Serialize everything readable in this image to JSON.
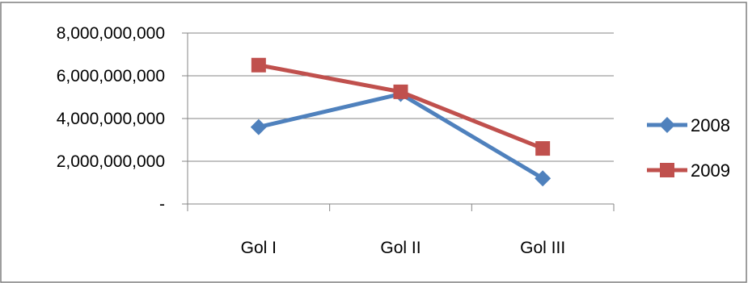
{
  "chart_data": {
    "type": "line",
    "title": "",
    "xlabel": "",
    "ylabel": "",
    "categories": [
      "Gol I",
      "Gol II",
      "Gol III"
    ],
    "ylim": [
      0,
      8000000000
    ],
    "y_ticks": [
      0,
      2000000000,
      4000000000,
      6000000000,
      8000000000
    ],
    "y_tick_labels": [
      "-",
      "2,000,000,000",
      "4,000,000,000",
      "6,000,000,000",
      "8,000,000,000"
    ],
    "grid": true,
    "legend_position": "right",
    "series": [
      {
        "name": "2008",
        "values": [
          3600000000,
          5150000000,
          1200000000
        ],
        "color": "#4F81BD",
        "marker": "diamond"
      },
      {
        "name": "2009",
        "values": [
          6500000000,
          5250000000,
          2600000000
        ],
        "color": "#C0504D",
        "marker": "square"
      }
    ]
  }
}
